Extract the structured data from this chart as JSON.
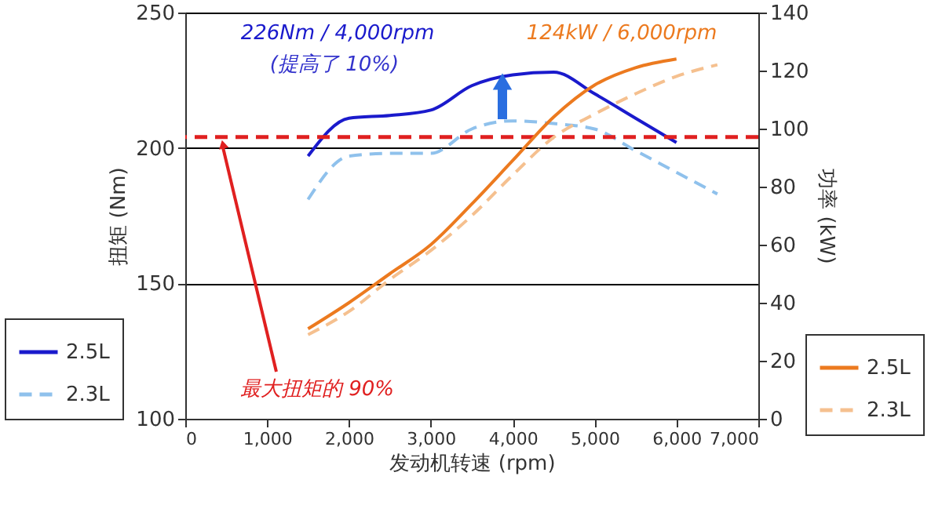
{
  "chart_data": {
    "type": "line",
    "xlabel": "发动机转速 (rpm)",
    "ylabel": "扭矩 (Nm)",
    "y2label": "功率 (kW)",
    "x": [
      1500,
      2000,
      2500,
      3000,
      3500,
      4000,
      4500,
      5000,
      5500,
      6000,
      6500
    ],
    "xlim": [
      0,
      7000
    ],
    "xticks": [
      0,
      {
        "value": 1000,
        "label": "1,000"
      },
      {
        "value": 2000,
        "label": "2,000"
      },
      {
        "value": 3000,
        "label": "3,000"
      },
      {
        "value": 4000,
        "label": "4,000"
      },
      {
        "value": 5000,
        "label": "5,000"
      },
      {
        "value": 6000,
        "label": "6,000"
      },
      {
        "value": 7000,
        "label": "7,000"
      }
    ],
    "ylim": [
      100,
      250
    ],
    "yticks": [
      100,
      150,
      200,
      250
    ],
    "y2lim": [
      0,
      140
    ],
    "y2ticks": [
      0,
      20,
      40,
      60,
      80,
      100,
      120,
      140
    ],
    "grid": "y",
    "marker": "none",
    "legend": "bottom",
    "series": [
      {
        "name": "2.5L",
        "color": "#1a1acc",
        "line_style": "solid",
        "values": [
          197,
          211,
          212,
          214,
          223,
          227,
          228,
          220,
          211,
          202,
          null
        ]
      },
      {
        "name": "2.3L",
        "color": "#8fc1ec",
        "line_style": "dashed",
        "values": [
          181,
          197,
          198,
          198,
          207,
          210,
          209,
          207,
          199,
          191,
          183
        ]
      },
      {
        "name": "2.5L",
        "color": "#ec7a1f",
        "line_style": "solid",
        "axis": "y2",
        "values": [
          31,
          40,
          50,
          60,
          74,
          89,
          104,
          115,
          121,
          124,
          null
        ]
      },
      {
        "name": "2.3L",
        "color": "#f5c08f",
        "line_style": "dashed",
        "axis": "y2",
        "values": [
          29,
          37,
          48,
          58,
          70,
          84,
          97,
          105,
          112,
          118,
          122
        ]
      }
    ],
    "ref_lines": [
      {
        "axis": "y",
        "value": 204,
        "color": "#e02020",
        "line_style": "dashed"
      }
    ],
    "annotations": [
      "226Nm / 4,000rpm",
      "(提高了 10%)",
      "124kW / 6,000rpm",
      "最大扭矩的 90%"
    ]
  }
}
